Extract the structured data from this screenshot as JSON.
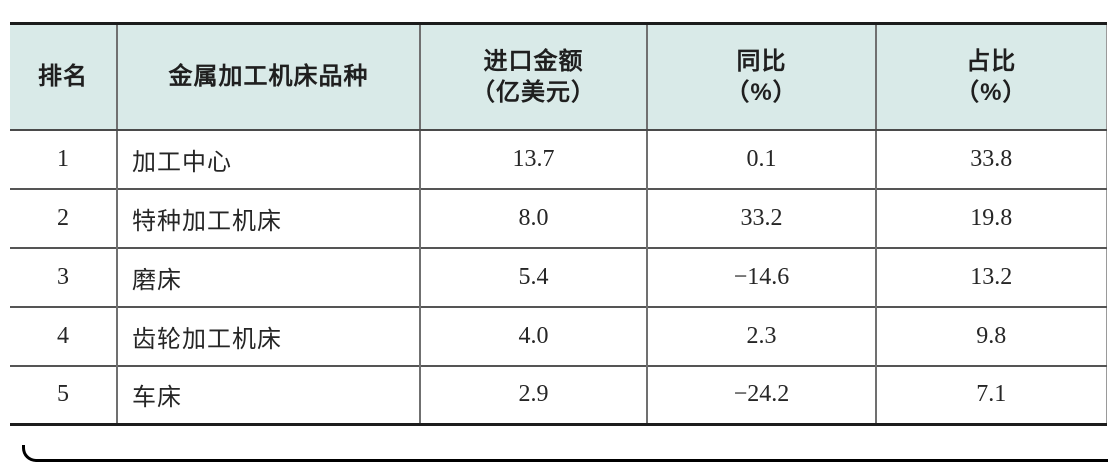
{
  "page": {
    "background_color": "#ffffff",
    "header_bg_color": "#d9eae8",
    "border_dark_color": "#1c1c1c"
  },
  "table": {
    "columns": [
      {
        "label": "排名",
        "sub": ""
      },
      {
        "label": "金属加工机床品种",
        "sub": ""
      },
      {
        "label": "进口金额",
        "sub": "（亿美元）"
      },
      {
        "label": "同比",
        "sub": "（%）"
      },
      {
        "label": "占比",
        "sub": "（%）"
      }
    ],
    "rows": [
      {
        "rank": "1",
        "category": "加工中心",
        "import_amount": "13.7",
        "yoy": "0.1",
        "share": "33.8"
      },
      {
        "rank": "2",
        "category": "特种加工机床",
        "import_amount": "8.0",
        "yoy": "33.2",
        "share": "19.8"
      },
      {
        "rank": "3",
        "category": "磨床",
        "import_amount": "5.4",
        "yoy": "−14.6",
        "share": "13.2"
      },
      {
        "rank": "4",
        "category": "齿轮加工机床",
        "import_amount": "4.0",
        "yoy": "2.3",
        "share": "9.8"
      },
      {
        "rank": "5",
        "category": "车床",
        "import_amount": "2.9",
        "yoy": "−24.2",
        "share": "7.1"
      }
    ]
  }
}
